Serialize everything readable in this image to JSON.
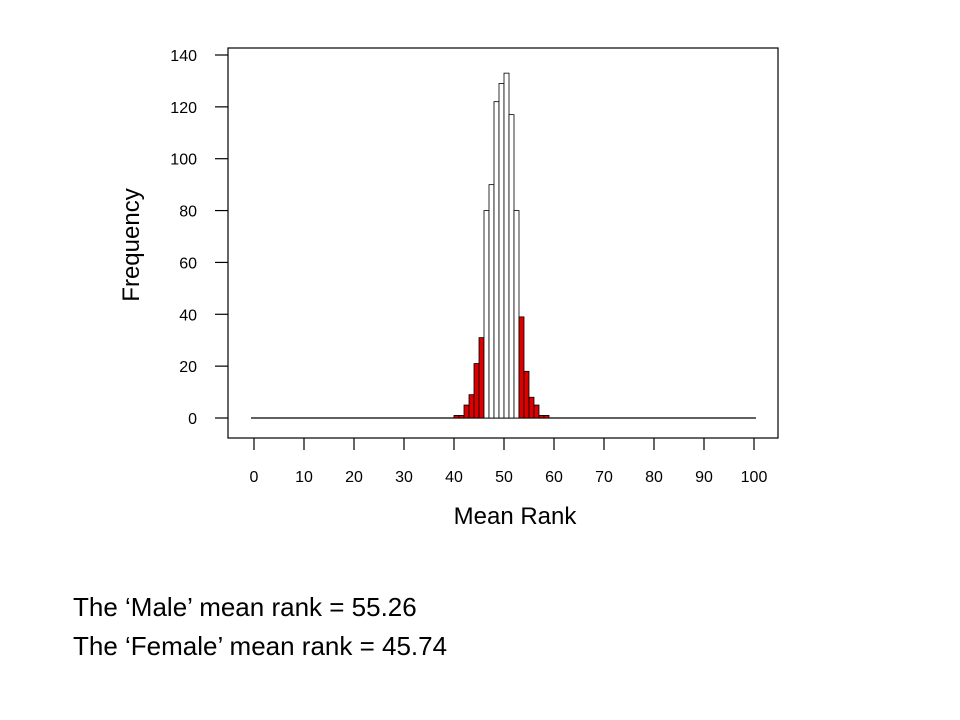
{
  "chart_data": {
    "type": "bar",
    "title": "",
    "xlabel": "Mean Rank",
    "ylabel": "Frequency",
    "xlim": [
      0,
      100
    ],
    "ylim": [
      0,
      140
    ],
    "x_ticks": [
      0,
      10,
      20,
      30,
      40,
      50,
      60,
      70,
      80,
      90,
      100
    ],
    "y_ticks": [
      0,
      20,
      40,
      60,
      80,
      100,
      120,
      140
    ],
    "bin_width": 1,
    "bins": [
      {
        "x": 40,
        "value": 1,
        "color": "#dd0000"
      },
      {
        "x": 41,
        "value": 1,
        "color": "#dd0000"
      },
      {
        "x": 42,
        "value": 5,
        "color": "#dd0000"
      },
      {
        "x": 43,
        "value": 9,
        "color": "#dd0000"
      },
      {
        "x": 44,
        "value": 21,
        "color": "#dd0000"
      },
      {
        "x": 45,
        "value": 31,
        "color": "#dd0000"
      },
      {
        "x": 46,
        "value": 80,
        "color": "#ffffff"
      },
      {
        "x": 47,
        "value": 90,
        "color": "#ffffff"
      },
      {
        "x": 48,
        "value": 122,
        "color": "#ffffff"
      },
      {
        "x": 49,
        "value": 129,
        "color": "#ffffff"
      },
      {
        "x": 50,
        "value": 133,
        "color": "#ffffff"
      },
      {
        "x": 51,
        "value": 117,
        "color": "#ffffff"
      },
      {
        "x": 52,
        "value": 80,
        "color": "#ffffff"
      },
      {
        "x": 53,
        "value": 39,
        "color": "#dd0000"
      },
      {
        "x": 54,
        "value": 18,
        "color": "#dd0000"
      },
      {
        "x": 55,
        "value": 8,
        "color": "#dd0000"
      },
      {
        "x": 56,
        "value": 5,
        "color": "#dd0000"
      },
      {
        "x": 57,
        "value": 1,
        "color": "#dd0000"
      },
      {
        "x": 58,
        "value": 1,
        "color": "#dd0000"
      }
    ],
    "grid": false,
    "legend": "none"
  },
  "colors": {
    "rejection_region": "#dd0000",
    "acceptance_region": "#ffffff",
    "axis": "#000000"
  },
  "footer": {
    "line1": "The ‘Male’ mean rank = 55.26",
    "line2": "The ‘Female’ mean rank = 45.74"
  }
}
